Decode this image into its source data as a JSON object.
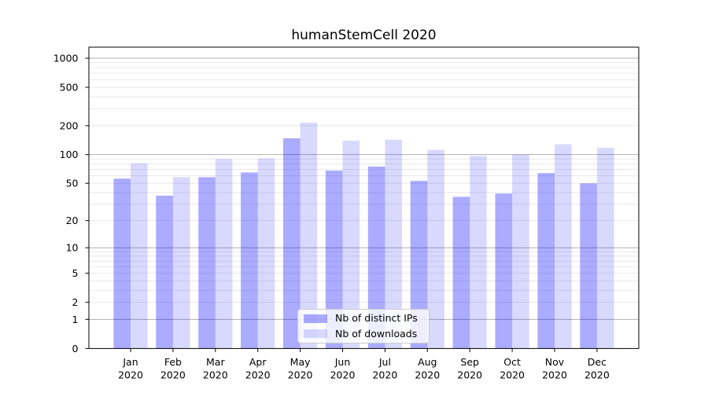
{
  "chart_data": {
    "type": "bar",
    "title": "humanStemCell 2020",
    "categories": [
      "Jan",
      "Feb",
      "Mar",
      "Apr",
      "May",
      "Jun",
      "Jul",
      "Aug",
      "Sep",
      "Oct",
      "Nov",
      "Dec"
    ],
    "category_year": "2020",
    "series": [
      {
        "name": "Nb of distinct IPs",
        "color": "rgba(0,0,255,0.33)",
        "color_hex_on_white": "#aaaaff",
        "values": [
          56,
          37,
          58,
          65,
          148,
          68,
          75,
          53,
          36,
          39,
          64,
          50
        ]
      },
      {
        "name": "Nb of downloads",
        "color": "rgba(0,0,255,0.15)",
        "color_hex_on_white": "#d9d9ff",
        "values": [
          81,
          58,
          90,
          91,
          215,
          140,
          143,
          112,
          97,
          100,
          128,
          118
        ]
      }
    ],
    "yscale": "log1p",
    "ylim": [
      0,
      1300
    ],
    "y_ticks": [
      0,
      1,
      2,
      5,
      10,
      20,
      50,
      100,
      200,
      500,
      1000
    ],
    "xlabel": "",
    "ylabel": "",
    "grid": {
      "major_values": [
        1,
        10,
        100,
        1000
      ],
      "minor_values": [
        2,
        3,
        4,
        5,
        6,
        7,
        8,
        9,
        20,
        30,
        40,
        50,
        60,
        70,
        80,
        90,
        200,
        300,
        400,
        500,
        600,
        700,
        800,
        900
      ],
      "major_color": "#b0b0b0",
      "minor_color": "#e8e8e8"
    },
    "legend": {
      "position": "lower center"
    },
    "axis_color": "#000000",
    "text_color": "#000000",
    "background_color": "#ffffff"
  }
}
